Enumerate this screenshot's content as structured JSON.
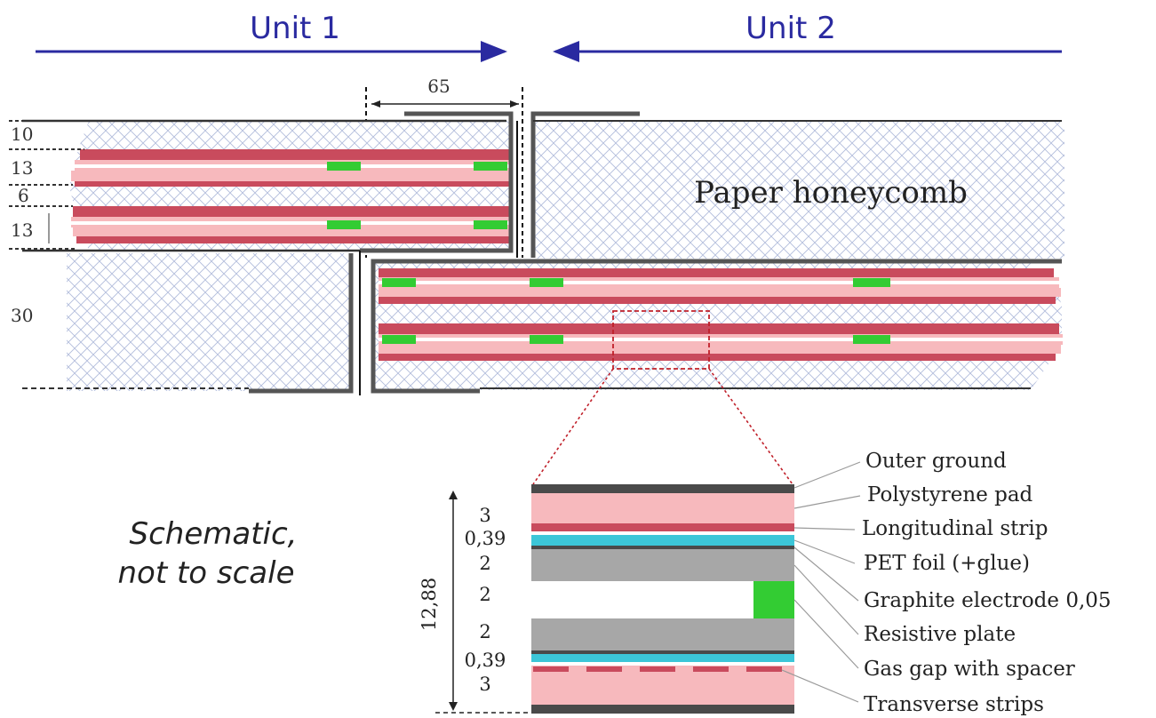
{
  "units": {
    "left": "Unit 1",
    "right": "Unit 2"
  },
  "overlap_dim": "65",
  "left_dims": [
    "10",
    "13",
    "6",
    "13",
    "30"
  ],
  "honeycomb_label": "Paper honeycomb",
  "note": {
    "line1": "Schematic,",
    "line2": "not to scale"
  },
  "stack": {
    "total": "12,88",
    "thicknesses": [
      "3",
      "0,39",
      "2",
      "2",
      "2",
      "0,39",
      "3"
    ],
    "layers": [
      "Outer ground",
      "Polystyrene pad",
      "Longitudinal strip",
      "PET foil (+glue)",
      "Graphite electrode 0,05",
      "Resistive plate",
      "Gas gap with spacer",
      "Transverse strips"
    ]
  },
  "colors": {
    "arrow": "#2a2aa0",
    "strip_red": "#c94b5d",
    "polystyrene_pink": "#f7b9bd",
    "electrode_green": "#33cc33",
    "pet_cyan": "#3cc6d8",
    "resistive_gray": "#a7a7a7",
    "ground_dark": "#4a4a4a",
    "honeycomb_blue": "#b3bddc"
  }
}
